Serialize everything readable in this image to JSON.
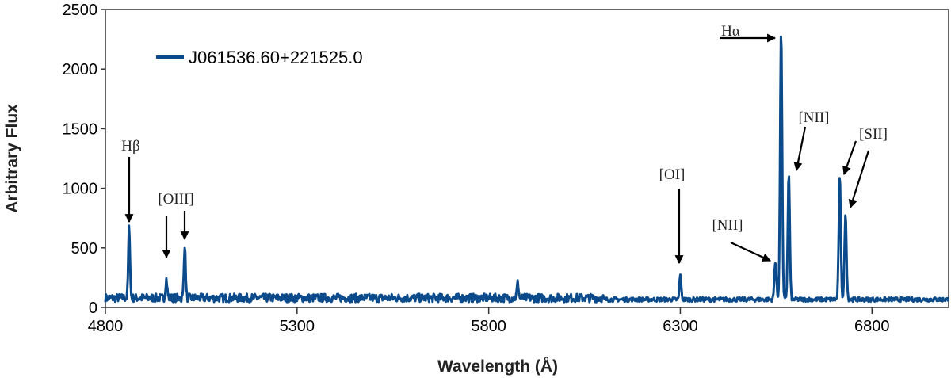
{
  "chart_data": {
    "type": "line",
    "title": "",
    "xlabel": "Wavelength (Å)",
    "ylabel": "Arbitrary Flux",
    "xlim": [
      4800,
      7000
    ],
    "ylim": [
      0,
      2500
    ],
    "xticks": [
      4800,
      5300,
      5800,
      6300,
      6800
    ],
    "yticks": [
      0,
      500,
      1000,
      1500,
      2000,
      2500
    ],
    "grid": false,
    "legend_position": "top-left",
    "series": [
      {
        "name": "J061536.60+221525.0",
        "color": "#0b4a8b",
        "continuum_level": 75,
        "emission_lines": [
          {
            "wavelength": 4862,
            "flux": 670
          },
          {
            "wavelength": 4959,
            "flux": 230
          },
          {
            "wavelength": 5007,
            "flux": 520
          },
          {
            "wavelength": 5876,
            "flux": 200
          },
          {
            "wavelength": 6300,
            "flux": 280
          },
          {
            "wavelength": 6548,
            "flux": 400
          },
          {
            "wavelength": 6563,
            "flux": 2330
          },
          {
            "wavelength": 6583,
            "flux": 1120
          },
          {
            "wavelength": 6716,
            "flux": 1100
          },
          {
            "wavelength": 6731,
            "flux": 780
          }
        ]
      }
    ],
    "annotations": [
      {
        "label": "Hβ"
      },
      {
        "label": "[OIII]"
      },
      {
        "label": "[OI]"
      },
      {
        "label": "[NII]"
      },
      {
        "label": "Hα"
      },
      {
        "label": "[NII]"
      },
      {
        "label": "[SII]"
      }
    ]
  }
}
